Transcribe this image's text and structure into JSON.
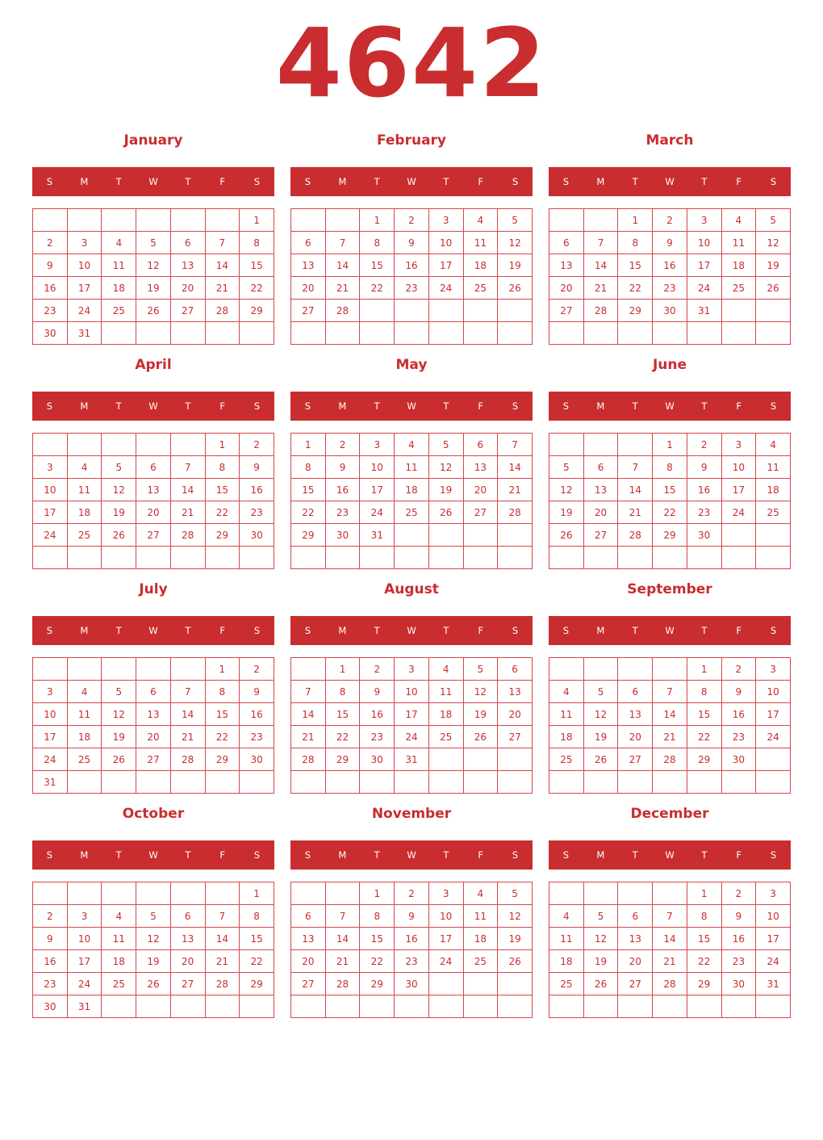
{
  "title": "4642",
  "accent_color": "#c92d2f",
  "weekday_headers": [
    "S",
    "M",
    "T",
    "W",
    "T",
    "F",
    "S"
  ],
  "months": [
    {
      "name": "January",
      "weeks": [
        [
          "",
          "",
          "",
          "",
          "",
          "",
          1
        ],
        [
          2,
          3,
          4,
          5,
          6,
          7,
          8
        ],
        [
          9,
          10,
          11,
          12,
          13,
          14,
          15
        ],
        [
          16,
          17,
          18,
          19,
          20,
          21,
          22
        ],
        [
          23,
          24,
          25,
          26,
          27,
          28,
          29
        ],
        [
          30,
          31,
          "",
          "",
          "",
          "",
          ""
        ]
      ]
    },
    {
      "name": "February",
      "weeks": [
        [
          "",
          "",
          1,
          2,
          3,
          4,
          5
        ],
        [
          6,
          7,
          8,
          9,
          10,
          11,
          12
        ],
        [
          13,
          14,
          15,
          16,
          17,
          18,
          19
        ],
        [
          20,
          21,
          22,
          23,
          24,
          25,
          26
        ],
        [
          27,
          28,
          "",
          "",
          "",
          "",
          ""
        ],
        [
          "",
          "",
          "",
          "",
          "",
          "",
          ""
        ]
      ]
    },
    {
      "name": "March",
      "weeks": [
        [
          "",
          "",
          1,
          2,
          3,
          4,
          5
        ],
        [
          6,
          7,
          8,
          9,
          10,
          11,
          12
        ],
        [
          13,
          14,
          15,
          16,
          17,
          18,
          19
        ],
        [
          20,
          21,
          22,
          23,
          24,
          25,
          26
        ],
        [
          27,
          28,
          29,
          30,
          31,
          "",
          ""
        ],
        [
          "",
          "",
          "",
          "",
          "",
          "",
          ""
        ]
      ]
    },
    {
      "name": "April",
      "weeks": [
        [
          "",
          "",
          "",
          "",
          "",
          1,
          2
        ],
        [
          3,
          4,
          5,
          6,
          7,
          8,
          9
        ],
        [
          10,
          11,
          12,
          13,
          14,
          15,
          16
        ],
        [
          17,
          18,
          19,
          20,
          21,
          22,
          23
        ],
        [
          24,
          25,
          26,
          27,
          28,
          29,
          30
        ],
        [
          "",
          "",
          "",
          "",
          "",
          "",
          ""
        ]
      ]
    },
    {
      "name": "May",
      "weeks": [
        [
          1,
          2,
          3,
          4,
          5,
          6,
          7
        ],
        [
          8,
          9,
          10,
          11,
          12,
          13,
          14
        ],
        [
          15,
          16,
          17,
          18,
          19,
          20,
          21
        ],
        [
          22,
          23,
          24,
          25,
          26,
          27,
          28
        ],
        [
          29,
          30,
          31,
          "",
          "",
          "",
          ""
        ],
        [
          "",
          "",
          "",
          "",
          "",
          "",
          ""
        ]
      ]
    },
    {
      "name": "June",
      "weeks": [
        [
          "",
          "",
          "",
          1,
          2,
          3,
          4
        ],
        [
          5,
          6,
          7,
          8,
          9,
          10,
          11
        ],
        [
          12,
          13,
          14,
          15,
          16,
          17,
          18
        ],
        [
          19,
          20,
          21,
          22,
          23,
          24,
          25
        ],
        [
          26,
          27,
          28,
          29,
          30,
          "",
          ""
        ],
        [
          "",
          "",
          "",
          "",
          "",
          "",
          ""
        ]
      ]
    },
    {
      "name": "July",
      "weeks": [
        [
          "",
          "",
          "",
          "",
          "",
          1,
          2
        ],
        [
          3,
          4,
          5,
          6,
          7,
          8,
          9
        ],
        [
          10,
          11,
          12,
          13,
          14,
          15,
          16
        ],
        [
          17,
          18,
          19,
          20,
          21,
          22,
          23
        ],
        [
          24,
          25,
          26,
          27,
          28,
          29,
          30
        ],
        [
          31,
          "",
          "",
          "",
          "",
          "",
          ""
        ]
      ]
    },
    {
      "name": "August",
      "weeks": [
        [
          "",
          1,
          2,
          3,
          4,
          5,
          6
        ],
        [
          7,
          8,
          9,
          10,
          11,
          12,
          13
        ],
        [
          14,
          15,
          16,
          17,
          18,
          19,
          20
        ],
        [
          21,
          22,
          23,
          24,
          25,
          26,
          27
        ],
        [
          28,
          29,
          30,
          31,
          "",
          "",
          ""
        ],
        [
          "",
          "",
          "",
          "",
          "",
          "",
          ""
        ]
      ]
    },
    {
      "name": "September",
      "weeks": [
        [
          "",
          "",
          "",
          "",
          1,
          2,
          3
        ],
        [
          4,
          5,
          6,
          7,
          8,
          9,
          10
        ],
        [
          11,
          12,
          13,
          14,
          15,
          16,
          17
        ],
        [
          18,
          19,
          20,
          21,
          22,
          23,
          24
        ],
        [
          25,
          26,
          27,
          28,
          29,
          30,
          ""
        ],
        [
          "",
          "",
          "",
          "",
          "",
          "",
          ""
        ]
      ]
    },
    {
      "name": "October",
      "weeks": [
        [
          "",
          "",
          "",
          "",
          "",
          "",
          1
        ],
        [
          2,
          3,
          4,
          5,
          6,
          7,
          8
        ],
        [
          9,
          10,
          11,
          12,
          13,
          14,
          15
        ],
        [
          16,
          17,
          18,
          19,
          20,
          21,
          22
        ],
        [
          23,
          24,
          25,
          26,
          27,
          28,
          29
        ],
        [
          30,
          31,
          "",
          "",
          "",
          "",
          ""
        ]
      ]
    },
    {
      "name": "November",
      "weeks": [
        [
          "",
          "",
          1,
          2,
          3,
          4,
          5
        ],
        [
          6,
          7,
          8,
          9,
          10,
          11,
          12
        ],
        [
          13,
          14,
          15,
          16,
          17,
          18,
          19
        ],
        [
          20,
          21,
          22,
          23,
          24,
          25,
          26
        ],
        [
          27,
          28,
          29,
          30,
          "",
          "",
          ""
        ],
        [
          "",
          "",
          "",
          "",
          "",
          "",
          ""
        ]
      ]
    },
    {
      "name": "December",
      "weeks": [
        [
          "",
          "",
          "",
          "",
          1,
          2,
          3
        ],
        [
          4,
          5,
          6,
          7,
          8,
          9,
          10
        ],
        [
          11,
          12,
          13,
          14,
          15,
          16,
          17
        ],
        [
          18,
          19,
          20,
          21,
          22,
          23,
          24
        ],
        [
          25,
          26,
          27,
          28,
          29,
          30,
          31
        ],
        [
          "",
          "",
          "",
          "",
          "",
          "",
          ""
        ]
      ]
    }
  ]
}
